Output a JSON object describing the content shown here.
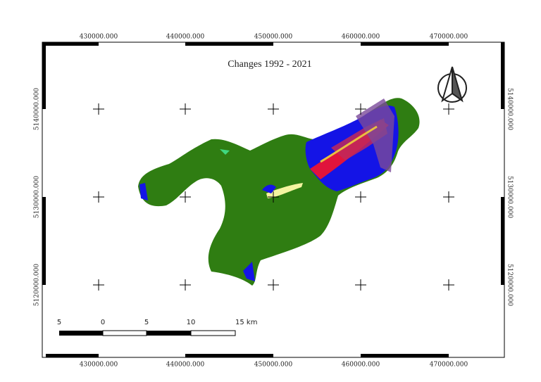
{
  "title": "Changes 1992 - 2021",
  "grid": {
    "x_labels": [
      "430000.000",
      "440000.000",
      "450000.000",
      "460000.000",
      "470000.000"
    ],
    "y_labels": [
      "5140000.000",
      "5130000.000",
      "5120000.000"
    ]
  },
  "scale_bar": {
    "labels": [
      "5",
      "0",
      "5",
      "10",
      "15 km"
    ]
  }
}
